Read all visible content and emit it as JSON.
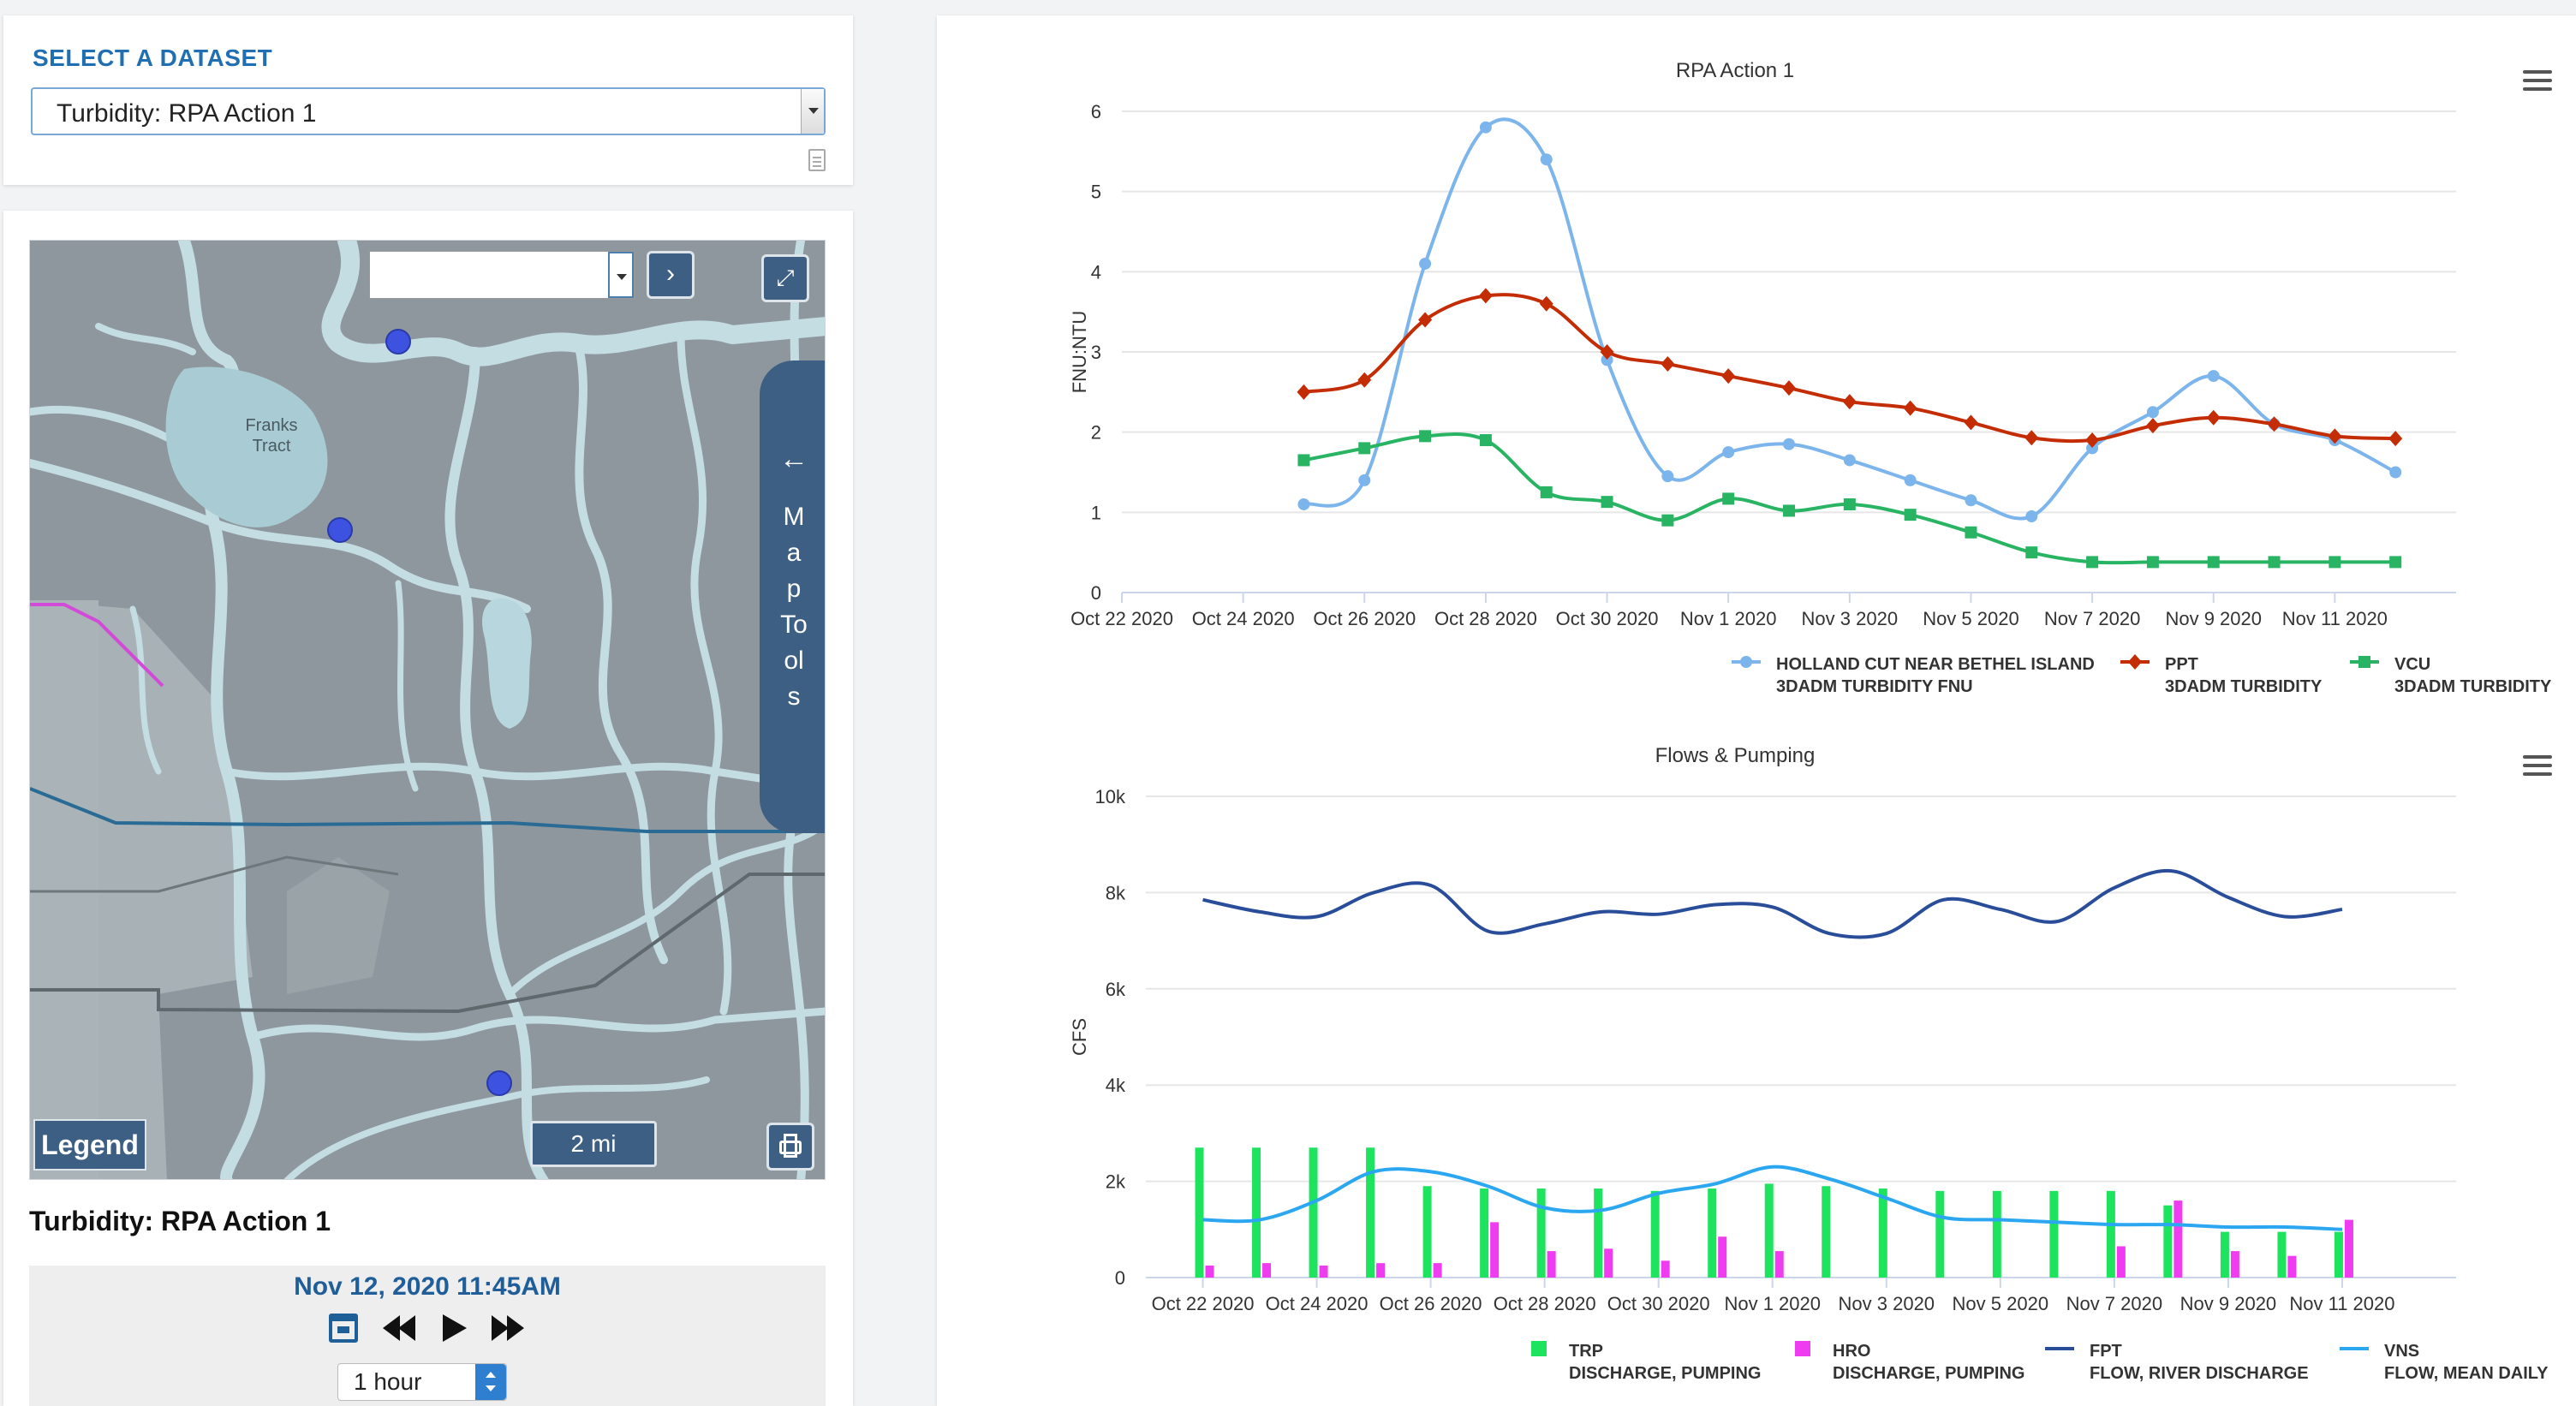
{
  "dataset_selector": {
    "title": "SELECT A DATASET",
    "selected": "Turbidity: RPA Action 1",
    "icons": [
      "dropdown-arrow-icon",
      "document-icon"
    ]
  },
  "map": {
    "lake_label_line1": "Franks",
    "lake_label_line2": "Tract",
    "tools_label": "Map Tools",
    "tools_arrow": "←",
    "go_arrow": "›",
    "expand_icon": "⤢",
    "legend_label": "Legend",
    "scale_label": "2 mi",
    "search_value": "",
    "colors": {
      "land": "#8e979d",
      "water": "#c3dde3",
      "station": "#3d52e0",
      "boundary": "#d24bd8",
      "route": "#2a6b96"
    }
  },
  "panel": {
    "dataset_title": "Turbidity: RPA Action 1",
    "timestamp": "Nov 12, 2020 11:45AM",
    "interval": "1 hour",
    "controls": [
      "calendar-icon",
      "rewind-icon",
      "play-icon",
      "fast-forward-icon"
    ]
  },
  "chart_data": [
    {
      "type": "line",
      "title": "RPA Action 1",
      "ylabel": "FNU:NTU",
      "xlabel": "",
      "ylim": [
        0,
        6
      ],
      "yticks": [
        0,
        1,
        2,
        3,
        4,
        5,
        6
      ],
      "x_range": [
        "2020-10-22",
        "2020-11-13"
      ],
      "x_tick_labels": [
        "Oct 22 2020",
        "Oct 24 2020",
        "Oct 26 2020",
        "Oct 28 2020",
        "Oct 30 2020",
        "Nov 1 2020",
        "Nov 3 2020",
        "Nov 5 2020",
        "Nov 7 2020",
        "Nov 9 2020",
        "Nov 11 2020"
      ],
      "x_dates": [
        "2020-10-25",
        "2020-10-26",
        "2020-10-27",
        "2020-10-28",
        "2020-10-29",
        "2020-10-30",
        "2020-10-31",
        "2020-11-01",
        "2020-11-02",
        "2020-11-03",
        "2020-11-04",
        "2020-11-05",
        "2020-11-06",
        "2020-11-07",
        "2020-11-08",
        "2020-11-09",
        "2020-11-10",
        "2020-11-11",
        "2020-11-12"
      ],
      "grid": true,
      "legend_position": "bottom",
      "series": [
        {
          "name": "HOLLAND CUT NEAR BETHEL ISLAND",
          "subname": "3DADM TURBIDITY FNU",
          "color": "#7cb5ec",
          "marker": "circle",
          "values": [
            1.1,
            1.4,
            4.1,
            5.8,
            5.4,
            2.9,
            1.45,
            1.75,
            1.85,
            1.65,
            1.4,
            1.15,
            0.95,
            1.8,
            2.25,
            2.7,
            2.1,
            1.9,
            1.5
          ]
        },
        {
          "name": "PPT",
          "subname": "3DADM TURBIDITY",
          "color": "#c42c04",
          "marker": "diamond",
          "values": [
            2.5,
            2.65,
            3.4,
            3.7,
            3.6,
            3.0,
            2.85,
            2.7,
            2.55,
            2.38,
            2.3,
            2.12,
            1.93,
            1.9,
            2.08,
            2.18,
            2.1,
            1.95,
            1.92
          ]
        },
        {
          "name": "VCU",
          "subname": "3DADM TURBIDITY",
          "color": "#28b463",
          "marker": "square",
          "values": [
            1.65,
            1.8,
            1.95,
            1.9,
            1.25,
            1.13,
            0.9,
            1.17,
            1.02,
            1.1,
            0.97,
            0.75,
            0.5,
            0.38,
            0.38,
            0.38,
            0.38,
            0.38,
            0.38
          ]
        }
      ]
    },
    {
      "type": "bar",
      "title": "Flows & Pumping",
      "ylabel": "CFS",
      "xlabel": "",
      "ylim": [
        0,
        10000
      ],
      "yticks": [
        0,
        2000,
        4000,
        6000,
        8000,
        10000
      ],
      "ytick_labels": [
        "0",
        "2k",
        "4k",
        "6k",
        "8k",
        "10k"
      ],
      "x_range": [
        "2020-10-21",
        "2020-11-13"
      ],
      "x_tick_labels": [
        "Oct 22 2020",
        "Oct 24 2020",
        "Oct 26 2020",
        "Oct 28 2020",
        "Oct 30 2020",
        "Nov 1 2020",
        "Nov 3 2020",
        "Nov 5 2020",
        "Nov 7 2020",
        "Nov 9 2020",
        "Nov 11 2020"
      ],
      "x_dates": [
        "2020-10-22",
        "2020-10-23",
        "2020-10-24",
        "2020-10-25",
        "2020-10-26",
        "2020-10-27",
        "2020-10-28",
        "2020-10-29",
        "2020-10-30",
        "2020-10-31",
        "2020-11-01",
        "2020-11-02",
        "2020-11-03",
        "2020-11-04",
        "2020-11-05",
        "2020-11-06",
        "2020-11-07",
        "2020-11-08",
        "2020-11-09",
        "2020-11-10",
        "2020-11-11"
      ],
      "grid": true,
      "legend_position": "bottom",
      "series": [
        {
          "name": "TRP",
          "subname": "DISCHARGE, PUMPING",
          "kind": "bar",
          "color": "#1de35e",
          "values": [
            2700,
            2700,
            2700,
            2700,
            1900,
            1850,
            1850,
            1850,
            1800,
            1850,
            1950,
            1900,
            1850,
            1800,
            1800,
            1800,
            1800,
            1500,
            950,
            950,
            950
          ]
        },
        {
          "name": "HRO",
          "subname": "DISCHARGE, PUMPING",
          "kind": "bar",
          "color": "#f03cf0",
          "values": [
            250,
            300,
            250,
            300,
            300,
            1150,
            550,
            600,
            350,
            850,
            550,
            0,
            0,
            0,
            0,
            0,
            650,
            1600,
            550,
            450,
            1200
          ]
        },
        {
          "name": "FPT",
          "subname": "FLOW, RIVER DISCHARGE",
          "kind": "line",
          "color": "#2a4d9a",
          "values": [
            7850,
            7600,
            7500,
            8000,
            8150,
            7200,
            7350,
            7600,
            7550,
            7750,
            7700,
            7150,
            7150,
            7850,
            7650,
            7400,
            8100,
            8450,
            7900,
            7500,
            7650
          ]
        },
        {
          "name": "VNS",
          "subname": "FLOW, MEAN DAILY",
          "kind": "line",
          "color": "#2aa7f0",
          "values": [
            1200,
            1200,
            1600,
            2200,
            2200,
            1900,
            1450,
            1400,
            1750,
            1950,
            2300,
            2050,
            1650,
            1250,
            1200,
            1150,
            1100,
            1100,
            1050,
            1050,
            1000
          ]
        }
      ]
    }
  ]
}
